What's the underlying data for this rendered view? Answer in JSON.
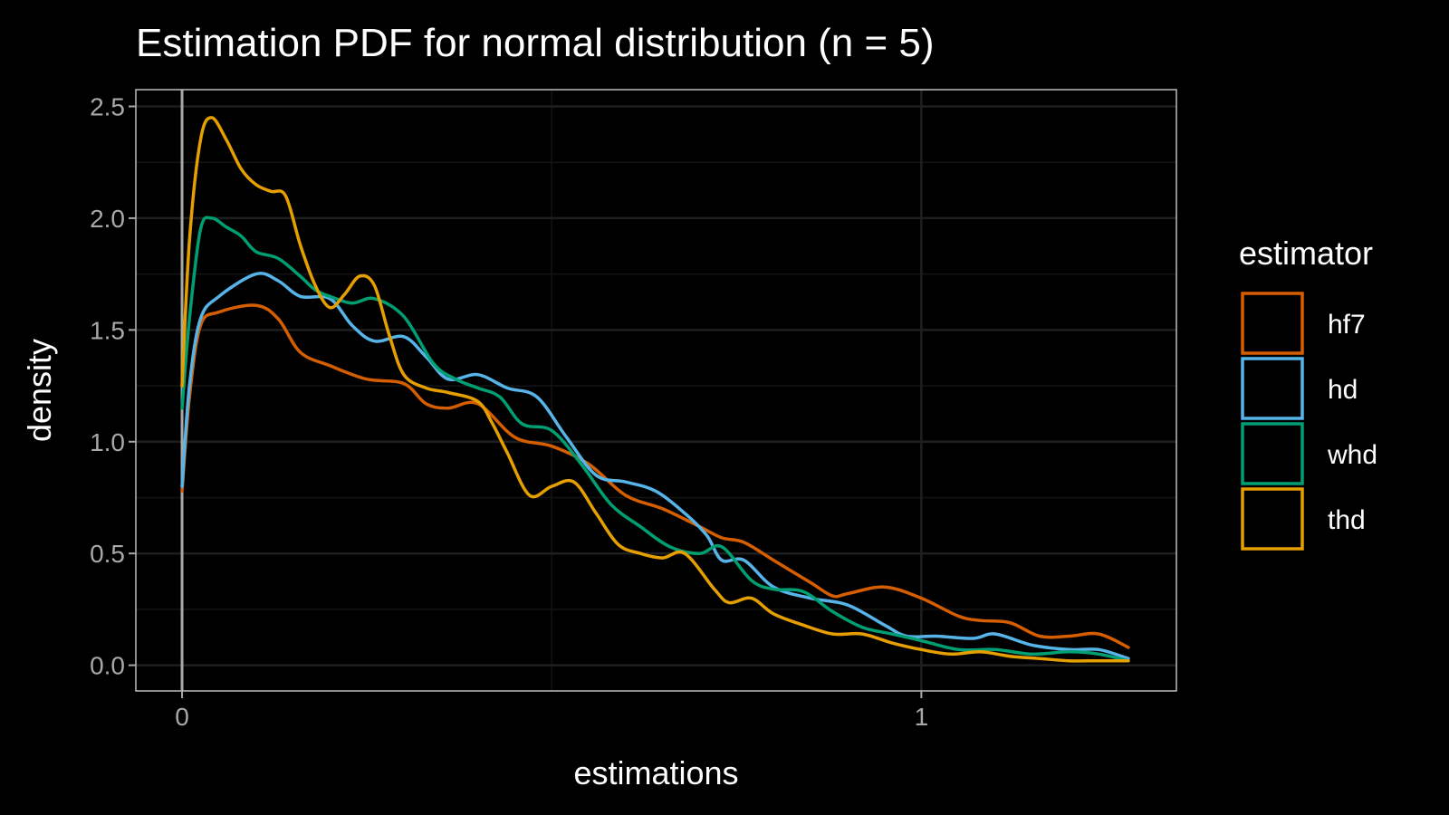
{
  "chart_data": {
    "type": "line",
    "title": "Estimation PDF for normal distribution (n = 5)",
    "xlabel": "estimations",
    "ylabel": "density",
    "xlim": [
      -0.0625,
      1.345
    ],
    "ylim": [
      -0.115,
      2.575
    ],
    "xticks": [
      0,
      1
    ],
    "xtick_labels": [
      "0",
      "1"
    ],
    "yticks": [
      0,
      0.5,
      1,
      1.5,
      2,
      2.5
    ],
    "ytick_labels": [
      "0.0",
      "0.5",
      "1.0",
      "1.5",
      "2.0",
      "2.5"
    ],
    "grid": true,
    "vline_x": 0,
    "legend": {
      "title": "estimator",
      "position": "right"
    },
    "series": [
      {
        "name": "hf7",
        "color": "#D55E00",
        "points": [
          [
            0,
            0.78
          ],
          [
            0.01,
            1.2
          ],
          [
            0.025,
            1.52
          ],
          [
            0.05,
            1.58
          ],
          [
            0.1,
            1.61
          ],
          [
            0.13,
            1.55
          ],
          [
            0.16,
            1.4
          ],
          [
            0.2,
            1.34
          ],
          [
            0.25,
            1.28
          ],
          [
            0.3,
            1.26
          ],
          [
            0.33,
            1.17
          ],
          [
            0.36,
            1.15
          ],
          [
            0.4,
            1.17
          ],
          [
            0.45,
            1.02
          ],
          [
            0.5,
            0.98
          ],
          [
            0.55,
            0.9
          ],
          [
            0.6,
            0.76
          ],
          [
            0.65,
            0.7
          ],
          [
            0.7,
            0.62
          ],
          [
            0.73,
            0.57
          ],
          [
            0.76,
            0.55
          ],
          [
            0.8,
            0.47
          ],
          [
            0.85,
            0.37
          ],
          [
            0.88,
            0.31
          ],
          [
            0.9,
            0.32
          ],
          [
            0.95,
            0.35
          ],
          [
            1.0,
            0.3
          ],
          [
            1.05,
            0.22
          ],
          [
            1.08,
            0.2
          ],
          [
            1.12,
            0.19
          ],
          [
            1.16,
            0.13
          ],
          [
            1.2,
            0.13
          ],
          [
            1.24,
            0.14
          ],
          [
            1.28,
            0.08
          ]
        ]
      },
      {
        "name": "hd",
        "color": "#56B4E9",
        "points": [
          [
            0,
            0.8
          ],
          [
            0.01,
            1.25
          ],
          [
            0.025,
            1.55
          ],
          [
            0.05,
            1.65
          ],
          [
            0.1,
            1.75
          ],
          [
            0.13,
            1.72
          ],
          [
            0.16,
            1.65
          ],
          [
            0.2,
            1.64
          ],
          [
            0.23,
            1.52
          ],
          [
            0.26,
            1.45
          ],
          [
            0.3,
            1.47
          ],
          [
            0.33,
            1.38
          ],
          [
            0.36,
            1.28
          ],
          [
            0.4,
            1.3
          ],
          [
            0.44,
            1.24
          ],
          [
            0.48,
            1.2
          ],
          [
            0.52,
            1.02
          ],
          [
            0.56,
            0.85
          ],
          [
            0.6,
            0.82
          ],
          [
            0.64,
            0.78
          ],
          [
            0.68,
            0.68
          ],
          [
            0.71,
            0.58
          ],
          [
            0.73,
            0.47
          ],
          [
            0.76,
            0.47
          ],
          [
            0.8,
            0.35
          ],
          [
            0.85,
            0.3
          ],
          [
            0.9,
            0.27
          ],
          [
            0.95,
            0.18
          ],
          [
            0.98,
            0.13
          ],
          [
            1.02,
            0.13
          ],
          [
            1.07,
            0.12
          ],
          [
            1.1,
            0.14
          ],
          [
            1.15,
            0.09
          ],
          [
            1.2,
            0.07
          ],
          [
            1.24,
            0.07
          ],
          [
            1.28,
            0.03
          ]
        ]
      },
      {
        "name": "whd",
        "color": "#009E73",
        "points": [
          [
            0,
            1.15
          ],
          [
            0.01,
            1.55
          ],
          [
            0.025,
            1.95
          ],
          [
            0.04,
            2.0
          ],
          [
            0.06,
            1.96
          ],
          [
            0.08,
            1.92
          ],
          [
            0.1,
            1.85
          ],
          [
            0.13,
            1.82
          ],
          [
            0.16,
            1.74
          ],
          [
            0.18,
            1.68
          ],
          [
            0.2,
            1.65
          ],
          [
            0.23,
            1.62
          ],
          [
            0.26,
            1.64
          ],
          [
            0.3,
            1.56
          ],
          [
            0.34,
            1.35
          ],
          [
            0.37,
            1.28
          ],
          [
            0.4,
            1.24
          ],
          [
            0.43,
            1.2
          ],
          [
            0.46,
            1.08
          ],
          [
            0.5,
            1.05
          ],
          [
            0.54,
            0.9
          ],
          [
            0.58,
            0.72
          ],
          [
            0.62,
            0.62
          ],
          [
            0.66,
            0.53
          ],
          [
            0.7,
            0.5
          ],
          [
            0.73,
            0.53
          ],
          [
            0.77,
            0.38
          ],
          [
            0.8,
            0.34
          ],
          [
            0.84,
            0.33
          ],
          [
            0.88,
            0.24
          ],
          [
            0.92,
            0.17
          ],
          [
            0.96,
            0.14
          ],
          [
            1.0,
            0.11
          ],
          [
            1.05,
            0.07
          ],
          [
            1.1,
            0.07
          ],
          [
            1.15,
            0.05
          ],
          [
            1.2,
            0.06
          ],
          [
            1.24,
            0.05
          ],
          [
            1.28,
            0.02
          ]
        ]
      },
      {
        "name": "thd",
        "color": "#E69F00",
        "points": [
          [
            0,
            1.25
          ],
          [
            0.01,
            1.9
          ],
          [
            0.025,
            2.35
          ],
          [
            0.04,
            2.45
          ],
          [
            0.06,
            2.35
          ],
          [
            0.08,
            2.22
          ],
          [
            0.1,
            2.15
          ],
          [
            0.12,
            2.12
          ],
          [
            0.14,
            2.1
          ],
          [
            0.16,
            1.88
          ],
          [
            0.18,
            1.7
          ],
          [
            0.2,
            1.6
          ],
          [
            0.22,
            1.66
          ],
          [
            0.24,
            1.74
          ],
          [
            0.26,
            1.7
          ],
          [
            0.28,
            1.48
          ],
          [
            0.3,
            1.3
          ],
          [
            0.33,
            1.24
          ],
          [
            0.36,
            1.22
          ],
          [
            0.4,
            1.18
          ],
          [
            0.42,
            1.08
          ],
          [
            0.44,
            0.95
          ],
          [
            0.47,
            0.76
          ],
          [
            0.5,
            0.8
          ],
          [
            0.53,
            0.82
          ],
          [
            0.56,
            0.68
          ],
          [
            0.59,
            0.54
          ],
          [
            0.62,
            0.5
          ],
          [
            0.65,
            0.48
          ],
          [
            0.68,
            0.5
          ],
          [
            0.72,
            0.34
          ],
          [
            0.74,
            0.28
          ],
          [
            0.77,
            0.3
          ],
          [
            0.8,
            0.23
          ],
          [
            0.84,
            0.18
          ],
          [
            0.88,
            0.14
          ],
          [
            0.92,
            0.14
          ],
          [
            0.96,
            0.1
          ],
          [
            1.0,
            0.07
          ],
          [
            1.04,
            0.05
          ],
          [
            1.08,
            0.06
          ],
          [
            1.12,
            0.04
          ],
          [
            1.16,
            0.03
          ],
          [
            1.2,
            0.02
          ],
          [
            1.24,
            0.02
          ],
          [
            1.28,
            0.02
          ]
        ]
      }
    ]
  }
}
